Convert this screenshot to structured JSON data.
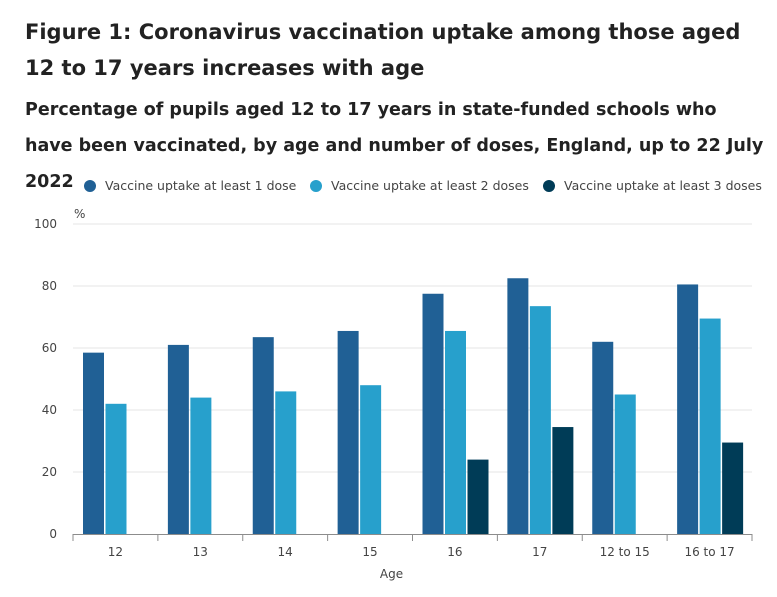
{
  "title": "Figure 1: Coronavirus vaccination uptake among those aged 12 to 17 years increases with age",
  "subtitle": "Percentage of pupils aged 12 to 17 years in state-funded schools who have been vaccinated, by age and number of doses, England, up to 22 July 2022",
  "chart_data": {
    "type": "bar",
    "title": "Figure 1: Coronavirus vaccination uptake among those aged 12 to 17 years increases with age",
    "subtitle": "Percentage of pupils aged 12 to 17 years in state-funded schools who have been vaccinated, by age and number of doses, England, up to 22 July 2022",
    "xlabel": "Age",
    "ylabel": "%",
    "ylim": [
      0,
      100
    ],
    "yticks": [
      0,
      20,
      40,
      60,
      80,
      100
    ],
    "grid": true,
    "legend_position": "top",
    "categories": [
      "12",
      "13",
      "14",
      "15",
      "16",
      "17",
      "12 to 15",
      "16 to 17"
    ],
    "series": [
      {
        "name": "Vaccine uptake at least 1 dose",
        "color": "#206095",
        "values": [
          58.5,
          61,
          63.5,
          65.5,
          77.5,
          82.5,
          62,
          80.5
        ]
      },
      {
        "name": "Vaccine uptake at least 2 doses",
        "color": "#27a0cc",
        "values": [
          42,
          44,
          46,
          48,
          65.5,
          73.5,
          45,
          69.5
        ]
      },
      {
        "name": "Vaccine uptake at least 3 doses",
        "color": "#003c57",
        "values": [
          null,
          null,
          null,
          null,
          24,
          34.5,
          null,
          29.5
        ]
      }
    ]
  }
}
